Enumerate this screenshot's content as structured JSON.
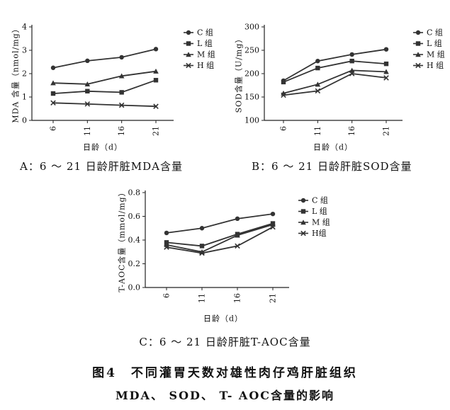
{
  "figure": {
    "panel_captions": [
      "A：6 ～ 21 日龄肝脏MDA含量",
      "B：6 ～ 21 日龄肝脏SOD含量",
      "C：6 ～ 21 日龄肝脏T-AOC含量"
    ],
    "title_line1": "图4　不同灌胃天数对雄性肉仔鸡肝脏组织",
    "title_line2": "MDA、 SOD、 T- AOC含量的影响"
  },
  "colors": {
    "line": "#333333",
    "axis": "#222222",
    "text": "#111111"
  },
  "chart_data": [
    {
      "type": "line",
      "x": [
        6,
        11,
        16,
        21
      ],
      "xticks": [
        "6",
        "11",
        "16",
        "21"
      ],
      "xlabel": "日龄（d）",
      "ylabel": "MDA 含量（nmol/mg）",
      "ylim": [
        0,
        4
      ],
      "yticks": [
        "0",
        "1",
        "2",
        "3",
        "4"
      ],
      "grid": false,
      "legend": "right",
      "series": [
        {
          "name": "C 组",
          "marker": "circle",
          "values": [
            2.25,
            2.55,
            2.7,
            3.05
          ]
        },
        {
          "name": "L 组",
          "marker": "square",
          "values": [
            1.15,
            1.25,
            1.2,
            1.72
          ]
        },
        {
          "name": "M 组",
          "marker": "triangle",
          "values": [
            1.6,
            1.55,
            1.9,
            2.1
          ]
        },
        {
          "name": "H 组",
          "marker": "cross",
          "values": [
            0.75,
            0.7,
            0.65,
            0.6
          ]
        }
      ]
    },
    {
      "type": "line",
      "x": [
        6,
        11,
        16,
        21
      ],
      "xticks": [
        "6",
        "11",
        "16",
        "21"
      ],
      "xlabel": "日龄（d）",
      "ylabel": "SOD含量（U/mg）",
      "ylim": [
        100,
        300
      ],
      "yticks": [
        "100",
        "150",
        "200",
        "250",
        "300"
      ],
      "grid": false,
      "legend": "right",
      "series": [
        {
          "name": "C 组",
          "marker": "circle",
          "values": [
            185,
            227,
            241,
            252
          ]
        },
        {
          "name": "L 组",
          "marker": "square",
          "values": [
            182,
            212,
            227,
            221
          ]
        },
        {
          "name": "M 组",
          "marker": "triangle",
          "values": [
            158,
            177,
            207,
            204
          ]
        },
        {
          "name": "H 组",
          "marker": "cross",
          "values": [
            154,
            163,
            200,
            191
          ]
        }
      ]
    },
    {
      "type": "line",
      "x": [
        6,
        11,
        16,
        21
      ],
      "xticks": [
        "6",
        "11",
        "16",
        "21"
      ],
      "xlabel": "日龄（d）",
      "ylabel": "T-AOC含量（mmol/mg）",
      "ylim": [
        0,
        0.8
      ],
      "yticks": [
        "0.0",
        "0.2",
        "0.4",
        "0.6",
        "0.8"
      ],
      "grid": false,
      "legend": "right",
      "series": [
        {
          "name": "C 组",
          "marker": "circle",
          "values": [
            0.46,
            0.5,
            0.58,
            0.62
          ]
        },
        {
          "name": "L 组",
          "marker": "square",
          "values": [
            0.38,
            0.35,
            0.45,
            0.54
          ]
        },
        {
          "name": "M 组",
          "marker": "triangle",
          "values": [
            0.36,
            0.3,
            0.44,
            0.53
          ]
        },
        {
          "name": "H组",
          "marker": "cross",
          "values": [
            0.34,
            0.29,
            0.35,
            0.51
          ]
        }
      ]
    }
  ]
}
